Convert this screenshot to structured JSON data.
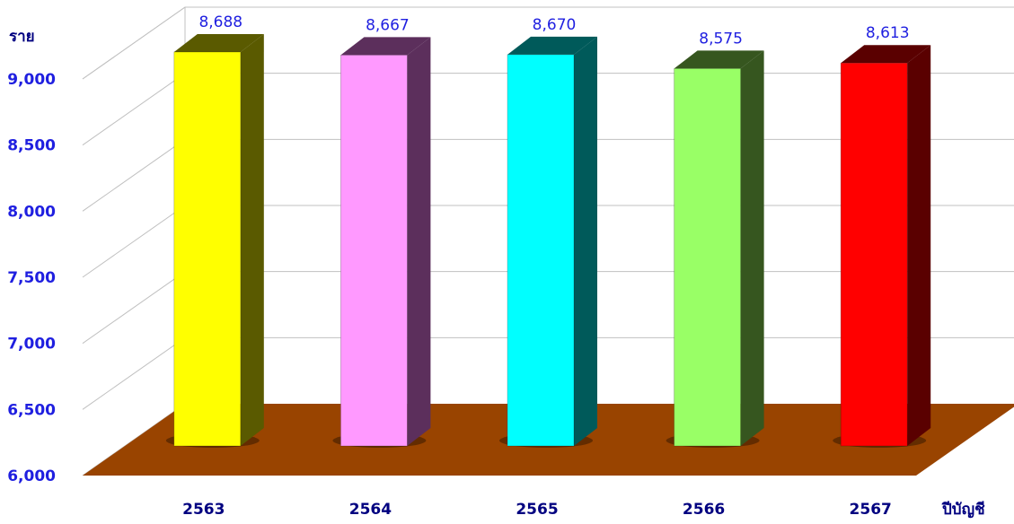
{
  "chart_data": {
    "type": "bar",
    "categories": [
      "2563",
      "2564",
      "2565",
      "2566",
      "2567"
    ],
    "values": [
      8688,
      8667,
      8670,
      8575,
      8613
    ],
    "data_labels": [
      "8,688",
      "8,667",
      "8,670",
      "8,575",
      "8,613"
    ],
    "ylabel": "ราย",
    "xlabel": "ปีบัญชี",
    "ylim": [
      6000,
      9000
    ],
    "yticks": [
      "6,000",
      "6,500",
      "7,000",
      "7,500",
      "8,000",
      "8,500",
      "9,000"
    ],
    "grid": true,
    "style": "3d",
    "colors": {
      "bar_fronts": [
        "#ffff00",
        "#ff99ff",
        "#00ffff",
        "#99ff66",
        "#ff0000"
      ],
      "bar_sides": [
        "#5a5a00",
        "#5c2f5c",
        "#005a5a",
        "#36561f",
        "#5a0000"
      ],
      "floor": "#994400",
      "tick_text": "#1f1fe0",
      "axis_text": "#000080",
      "gridline": "#c0c0c0"
    }
  }
}
